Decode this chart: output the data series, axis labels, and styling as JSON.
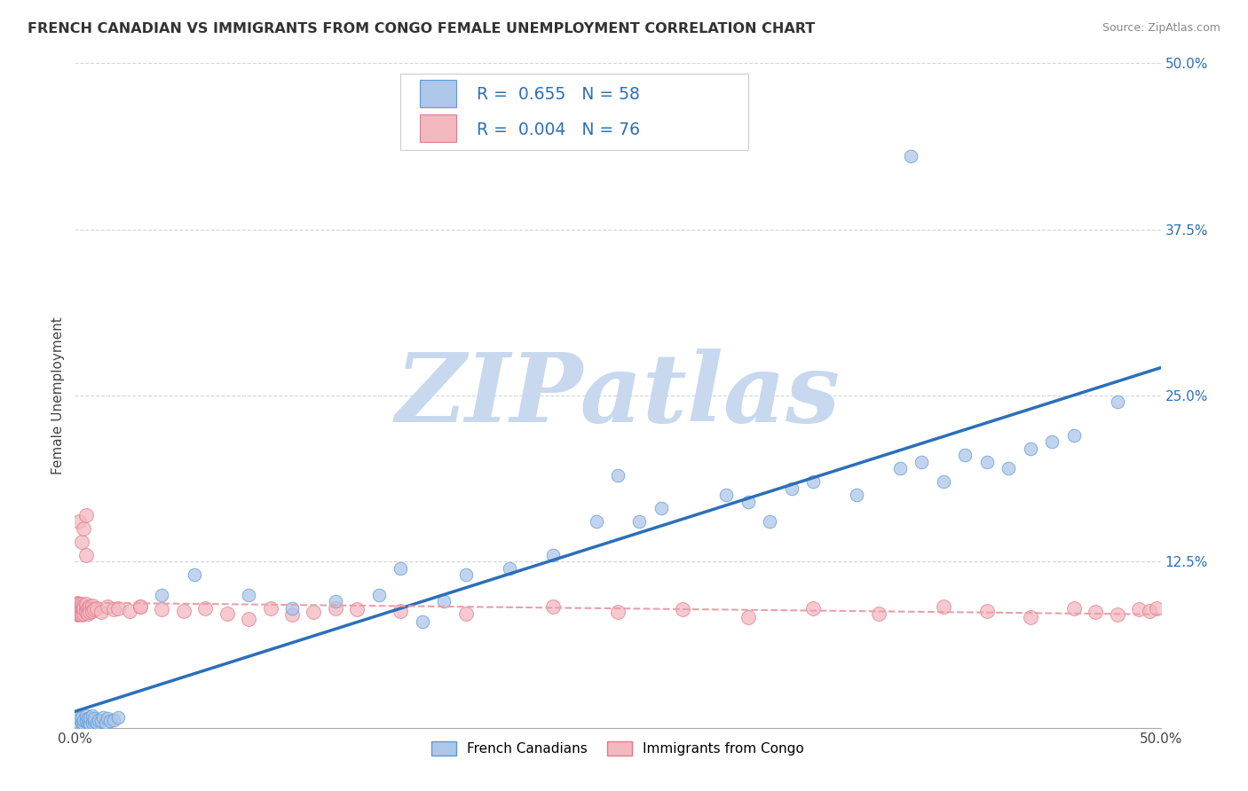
{
  "title": "FRENCH CANADIAN VS IMMIGRANTS FROM CONGO FEMALE UNEMPLOYMENT CORRELATION CHART",
  "source": "Source: ZipAtlas.com",
  "ylabel": "Female Unemployment",
  "xlim": [
    0,
    0.5
  ],
  "ylim": [
    0,
    0.5
  ],
  "ytick_labels": [
    "",
    "12.5%",
    "25.0%",
    "37.5%",
    "50.0%"
  ],
  "ytick_values": [
    0.0,
    0.125,
    0.25,
    0.375,
    0.5
  ],
  "grid_color": "#cccccc",
  "background_color": "#ffffff",
  "series1_color": "#aec6e8",
  "series1_edge": "#5b9bd5",
  "series1_label": "French Canadians",
  "series2_color": "#f4b8c1",
  "series2_edge": "#e07b8a",
  "series2_label": "Immigrants from Congo",
  "line1_color": "#2c6fba",
  "line2_color": "#e8a0a8",
  "R1": 0.655,
  "N1": 58,
  "R2": 0.004,
  "N2": 76,
  "legend_color": "#2c6fba",
  "watermark": "ZIPatlas",
  "watermark_color": "#c8d8ee"
}
